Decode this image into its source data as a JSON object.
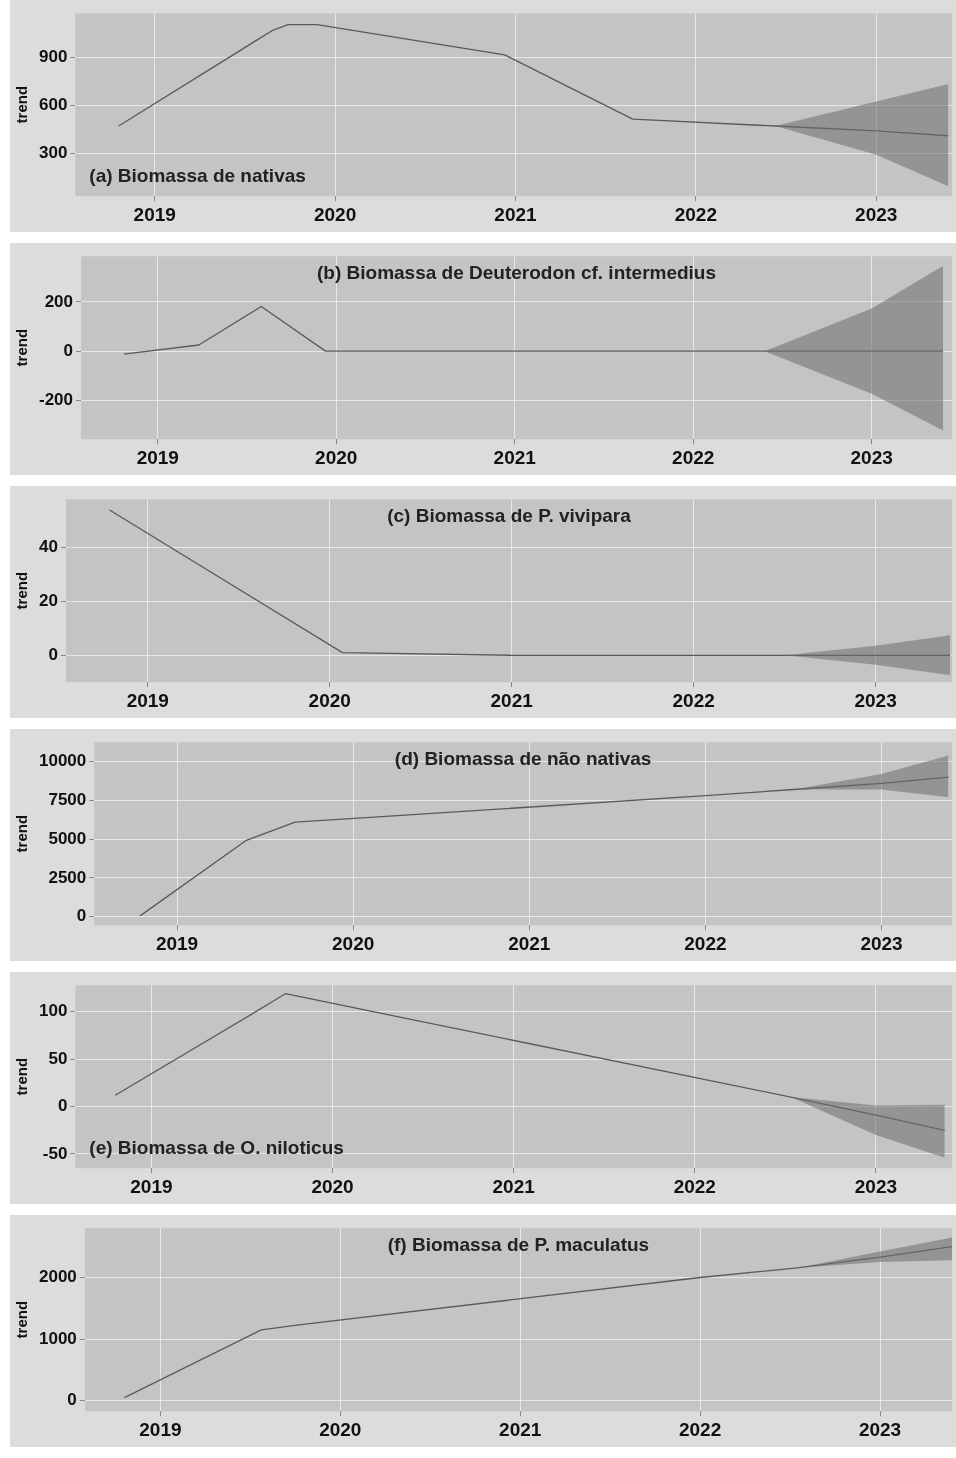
{
  "chart_data": [
    {
      "type": "line",
      "title": "(a) Biomassa de nativas",
      "ylabel": "trend",
      "marker": "none",
      "grid": true,
      "legend": false,
      "x": [
        2018.8,
        2019.65,
        2019.74,
        2019.9,
        2020.94,
        2021.65,
        2022.44,
        2023,
        2023.4
      ],
      "series": [
        {
          "color": "#5a5a5a",
          "values": [
            471,
            1070,
            1108,
            1108,
            918,
            514,
            471,
            440,
            410
          ],
          "lower": [
            null,
            null,
            null,
            null,
            null,
            null,
            471,
            290,
            92
          ],
          "upper": [
            null,
            null,
            null,
            null,
            null,
            null,
            471,
            625,
            735
          ]
        }
      ],
      "xlim": [
        2018.56,
        2023.42
      ],
      "xticks": [
        2019,
        2020,
        2021,
        2022,
        2023
      ],
      "ylim": [
        30,
        1180
      ],
      "yticks": [
        300,
        600,
        900
      ]
    },
    {
      "type": "line",
      "title": "(b) Biomassa de Deuterodon cf. intermedius",
      "ylabel": "trend",
      "marker": "none",
      "grid": true,
      "legend": false,
      "x": [
        2018.81,
        2019.23,
        2019.58,
        2019.94,
        2021,
        2022.4,
        2023,
        2023.4
      ],
      "series": [
        {
          "color": "#5a5a5a",
          "values": [
            -12,
            25,
            181,
            0,
            0,
            0,
            0,
            0
          ],
          "lower": [
            null,
            null,
            null,
            null,
            null,
            0,
            -173,
            -322
          ],
          "upper": [
            null,
            null,
            null,
            null,
            null,
            0,
            173,
            346
          ]
        }
      ],
      "xlim": [
        2018.57,
        2023.45
      ],
      "xticks": [
        2019,
        2020,
        2021,
        2022,
        2023
      ],
      "ylim": [
        -357,
        385
      ],
      "yticks": [
        -200,
        0,
        200
      ]
    },
    {
      "type": "line",
      "title": "(c) Biomassa de P. vivipara",
      "ylabel": "trend",
      "marker": "none",
      "grid": true,
      "legend": false,
      "x": [
        2018.79,
        2020.07,
        2021,
        2022.5,
        2023,
        2023.41
      ],
      "series": [
        {
          "color": "#5a5a5a",
          "values": [
            54,
            1,
            0,
            0,
            0,
            0
          ],
          "lower": [
            null,
            null,
            null,
            0,
            -3.5,
            -7.4
          ],
          "upper": [
            null,
            null,
            null,
            0,
            3.5,
            7.4
          ]
        }
      ],
      "xlim": [
        2018.55,
        2023.42
      ],
      "xticks": [
        2019,
        2020,
        2021,
        2022,
        2023
      ],
      "ylim": [
        -10,
        58
      ],
      "yticks": [
        0,
        20,
        40
      ]
    },
    {
      "type": "line",
      "title": "(d) Biomassa de não nativas",
      "ylabel": "trend",
      "marker": "none",
      "grid": true,
      "legend": false,
      "x": [
        2018.79,
        2019.39,
        2019.67,
        2020.03,
        2022,
        2022.5,
        2023,
        2023.38
      ],
      "series": [
        {
          "color": "#5a5a5a",
          "values": [
            50,
            4900,
            6100,
            6350,
            7800,
            8200,
            8600,
            9000
          ],
          "lower": [
            null,
            null,
            null,
            null,
            null,
            8200,
            8200,
            7700
          ],
          "upper": [
            null,
            null,
            null,
            null,
            null,
            8200,
            9200,
            10400
          ]
        }
      ],
      "xlim": [
        2018.53,
        2023.4
      ],
      "xticks": [
        2019,
        2020,
        2021,
        2022,
        2023
      ],
      "ylim": [
        -550,
        11250
      ],
      "yticks": [
        0,
        2500,
        5000,
        7500,
        10000
      ]
    },
    {
      "type": "line",
      "title": "(e) Biomassa de O. niloticus",
      "ylabel": "trend",
      "marker": "none",
      "grid": true,
      "legend": false,
      "x": [
        2018.8,
        2019.55,
        2019.74,
        2022.53,
        2023,
        2023.38
      ],
      "series": [
        {
          "color": "#5a5a5a",
          "values": [
            12,
            97,
            119,
            10,
            -9,
            -25
          ],
          "lower": [
            null,
            null,
            null,
            10,
            -30,
            -54
          ],
          "upper": [
            null,
            null,
            null,
            10,
            1,
            2
          ]
        }
      ],
      "xlim": [
        2018.58,
        2023.42
      ],
      "xticks": [
        2019,
        2020,
        2021,
        2022,
        2023
      ],
      "ylim": [
        -65,
        128
      ],
      "yticks": [
        -50,
        0,
        50,
        100
      ]
    },
    {
      "type": "line",
      "title": "(f) Biomassa de P. maculatus",
      "ylabel": "trend",
      "marker": "none",
      "grid": true,
      "legend": false,
      "x": [
        2018.8,
        2019.56,
        2019.77,
        2022,
        2022.54,
        2023,
        2023.4
      ],
      "series": [
        {
          "color": "#5a5a5a",
          "values": [
            50,
            1150,
            1230,
            2000,
            2155,
            2330,
            2500
          ],
          "lower": [
            null,
            null,
            null,
            null,
            2155,
            2250,
            2280
          ],
          "upper": [
            null,
            null,
            null,
            null,
            2155,
            2420,
            2650
          ]
        }
      ],
      "xlim": [
        2018.58,
        2023.4
      ],
      "xticks": [
        2019,
        2020,
        2021,
        2022,
        2023
      ],
      "ylim": [
        -170,
        2800
      ],
      "yticks": [
        0,
        1000,
        2000
      ]
    }
  ]
}
